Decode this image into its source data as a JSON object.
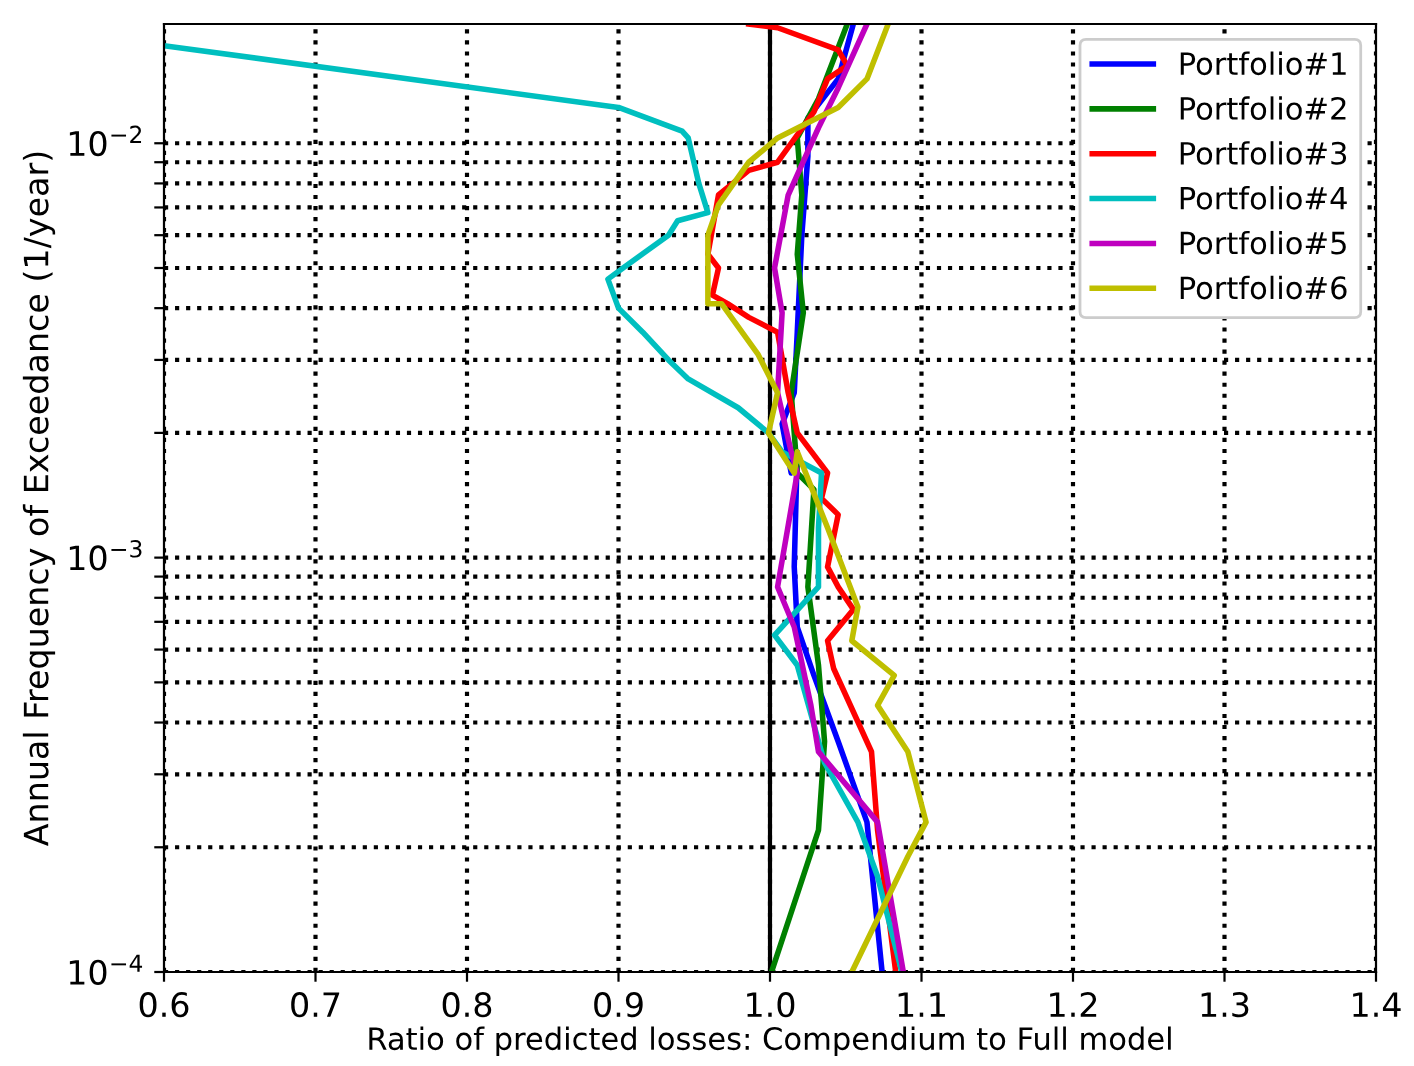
{
  "chart_data": {
    "type": "line",
    "xlabel": "Ratio of predicted losses: Compendium to Full model",
    "ylabel": "Annual Frequency of Exceedance (1/year)",
    "log": "y",
    "grid": true,
    "legend": "top right",
    "line_style": "solid",
    "marker": "none",
    "xlim": [
      0.6,
      1.4
    ],
    "xticks": [
      0.6,
      0.7,
      0.8,
      0.9,
      {
        "value": 1.0,
        "label": "1.0"
      },
      1.1,
      1.2,
      1.3,
      1.4
    ],
    "ylim": [
      0.0001,
      0.0194
    ],
    "yticks": [
      {
        "value": 0.0001,
        "label": "10$^{−4}$"
      },
      {
        "value": 0.0002,
        "label": null
      },
      {
        "value": 0.0003,
        "label": null
      },
      {
        "value": 0.0004,
        "label": null
      },
      {
        "value": 0.0005,
        "label": null
      },
      {
        "value": 0.0006,
        "label": null
      },
      {
        "value": 0.0007,
        "label": null
      },
      {
        "value": 0.0008,
        "label": null
      },
      {
        "value": 0.0009,
        "label": null
      },
      {
        "value": 0.001,
        "label": "10$^{−3}$"
      },
      {
        "value": 0.002,
        "label": null
      },
      {
        "value": 0.003,
        "label": null
      },
      {
        "value": 0.004,
        "label": null
      },
      {
        "value": 0.005,
        "label": null
      },
      {
        "value": 0.006,
        "label": null
      },
      {
        "value": 0.007,
        "label": null
      },
      {
        "value": 0.008,
        "label": null
      },
      {
        "value": 0.009,
        "label": null
      },
      {
        "value": 0.01,
        "label": "10$^{−2}$"
      }
    ],
    "ref_lines": [
      {
        "axis": "x",
        "value": 1.0,
        "color": "#000000",
        "line_style": "solid"
      }
    ],
    "series": [
      {
        "name": "Portfolio#1",
        "color": "#0000ff",
        "x": [
          1.055,
          1.045,
          1.025,
          1.025,
          1.021,
          1.018,
          1.016,
          1.008,
          1.014,
          1.018,
          1.016,
          1.018,
          1.029,
          1.045,
          1.064,
          1.074
        ],
        "values": [
          0.0194,
          0.0143,
          0.0115,
          0.0093,
          0.006,
          0.0035,
          0.0025,
          0.0021,
          0.0016,
          0.0018,
          0.00095,
          0.00068,
          0.00052,
          0.00036,
          0.00023,
          0.0001
        ]
      },
      {
        "name": "Portfolio#2",
        "color": "#008000",
        "x": [
          1.051,
          1.032,
          1.018,
          1.021,
          1.018,
          1.022,
          1.014,
          1.018,
          1.029,
          1.025,
          1.032,
          1.036,
          1.032,
          1.001
        ],
        "values": [
          0.0194,
          0.0128,
          0.0103,
          0.0075,
          0.0054,
          0.0039,
          0.0025,
          0.0016,
          0.00146,
          0.00085,
          0.00055,
          0.00036,
          0.00022,
          0.0001
        ]
      },
      {
        "name": "Portfolio#3",
        "color": "#ff0000",
        "x": [
          0.986,
          1.005,
          1.045,
          1.051,
          1.038,
          1.029,
          1.005,
          0.986,
          0.966,
          0.959,
          0.966,
          0.962,
          0.972,
          0.986,
          1.005,
          1.012,
          1.018,
          1.038,
          1.034,
          1.045,
          1.038,
          1.045,
          1.055,
          1.038,
          1.042,
          1.067,
          1.071,
          1.083
        ],
        "values": [
          0.0194,
          0.019,
          0.0168,
          0.0154,
          0.0143,
          0.0119,
          0.009,
          0.0086,
          0.0075,
          0.0054,
          0.005,
          0.0043,
          0.0041,
          0.0038,
          0.0035,
          0.0025,
          0.002,
          0.0016,
          0.00139,
          0.00127,
          0.00095,
          0.00085,
          0.00075,
          0.00063,
          0.00054,
          0.00034,
          0.00022,
          0.0001
        ]
      },
      {
        "name": "Portfolio#4",
        "color": "#00bfbf",
        "x": [
          0.6,
          0.9,
          0.942,
          0.946,
          0.953,
          0.959,
          0.939,
          0.933,
          0.903,
          0.893,
          0.9,
          0.916,
          0.933,
          0.946,
          0.979,
          0.999,
          1.008,
          1.034,
          1.032,
          1.032,
          1.003,
          1.018,
          1.036,
          1.058,
          1.071,
          1.087
        ],
        "values": [
          0.0172,
          0.0122,
          0.0107,
          0.0103,
          0.008,
          0.0068,
          0.0065,
          0.006,
          0.005,
          0.0047,
          0.004,
          0.0035,
          0.003,
          0.0027,
          0.0023,
          0.002,
          0.0018,
          0.0016,
          0.00118,
          0.00085,
          0.00065,
          0.00055,
          0.00032,
          0.00023,
          0.00017,
          0.0001
        ]
      },
      {
        "name": "Portfolio#5",
        "color": "#bf00bf",
        "x": [
          1.064,
          1.045,
          1.032,
          1.012,
          1.003,
          1.008,
          1.005,
          1.014,
          1.018,
          1.005,
          1.016,
          1.027,
          1.032,
          1.071,
          1.088
        ],
        "values": [
          0.0194,
          0.0136,
          0.0109,
          0.0075,
          0.005,
          0.0039,
          0.0025,
          0.0018,
          0.0016,
          0.00085,
          0.00068,
          0.00044,
          0.00034,
          0.00023,
          0.0001
        ]
      },
      {
        "name": "Portfolio#6",
        "color": "#bfbf00",
        "x": [
          1.078,
          1.064,
          1.045,
          1.005,
          0.986,
          0.966,
          0.959,
          0.959,
          0.968,
          0.992,
          1.005,
          0.999,
          1.016,
          1.018,
          1.038,
          1.058,
          1.054,
          1.082,
          1.071,
          1.091,
          1.103,
          1.091,
          1.054
        ],
        "values": [
          0.0194,
          0.0143,
          0.0122,
          0.0103,
          0.009,
          0.0071,
          0.006,
          0.0041,
          0.0041,
          0.0031,
          0.0025,
          0.002,
          0.0016,
          0.0018,
          0.00118,
          0.00076,
          0.00063,
          0.00052,
          0.00044,
          0.00034,
          0.00023,
          0.00019,
          0.0001
        ]
      }
    ]
  }
}
